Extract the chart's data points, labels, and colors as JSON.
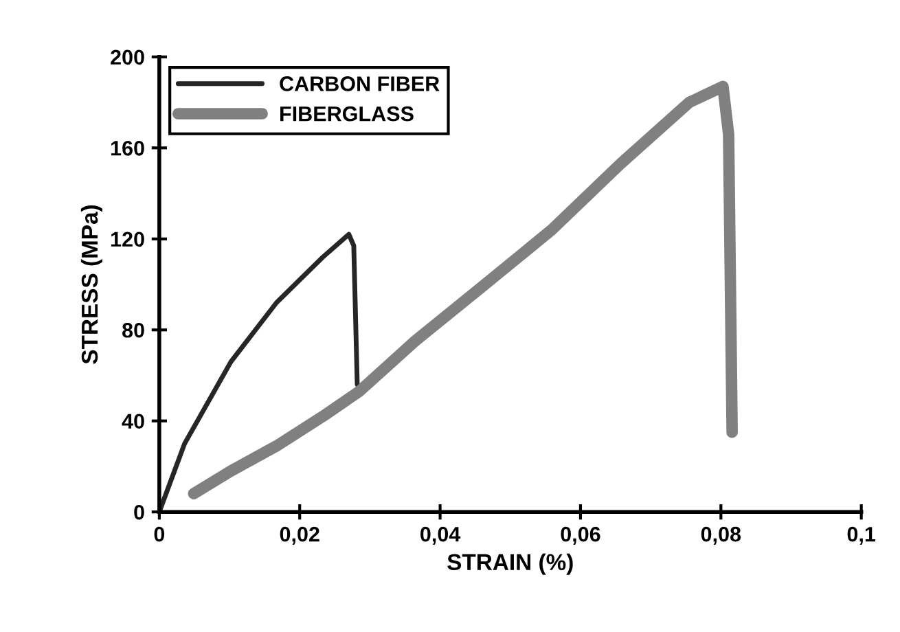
{
  "chart_data": {
    "type": "line",
    "xlabel": "STRAIN (%)",
    "ylabel": "STRESS (MPa)",
    "xlim": [
      0,
      0.1
    ],
    "xticks": [
      0,
      {
        "value": 0.02,
        "label": "0,02"
      },
      {
        "value": 0.04,
        "label": "0,04"
      },
      {
        "value": 0.06,
        "label": "0,06"
      },
      {
        "value": 0.08,
        "label": "0,08"
      },
      {
        "value": 0.1,
        "label": "0,1"
      }
    ],
    "ylim": [
      0,
      200
    ],
    "yticks": [
      0,
      40,
      80,
      120,
      160,
      200
    ],
    "grid": false,
    "legend": "top left",
    "marker": "none",
    "line_style": "solid",
    "series": [
      {
        "name": "CARBON FIBER",
        "color": "#262626",
        "x": [
          0,
          0.0036,
          0.0102,
          0.0167,
          0.0233,
          0.027,
          0.0277,
          0.0282
        ],
        "values": [
          0,
          30,
          66,
          92,
          112,
          122,
          117,
          56
        ]
      },
      {
        "name": "FIBERGLASS",
        "color": "#808080",
        "x": [
          0.0049,
          0.0102,
          0.0167,
          0.0233,
          0.0285,
          0.0364,
          0.046,
          0.0559,
          0.0657,
          0.0755,
          0.0803,
          0.0811,
          0.0816
        ],
        "values": [
          8,
          18,
          29,
          42,
          53,
          75,
          99,
          124,
          153,
          180,
          187,
          166,
          35
        ]
      }
    ]
  }
}
